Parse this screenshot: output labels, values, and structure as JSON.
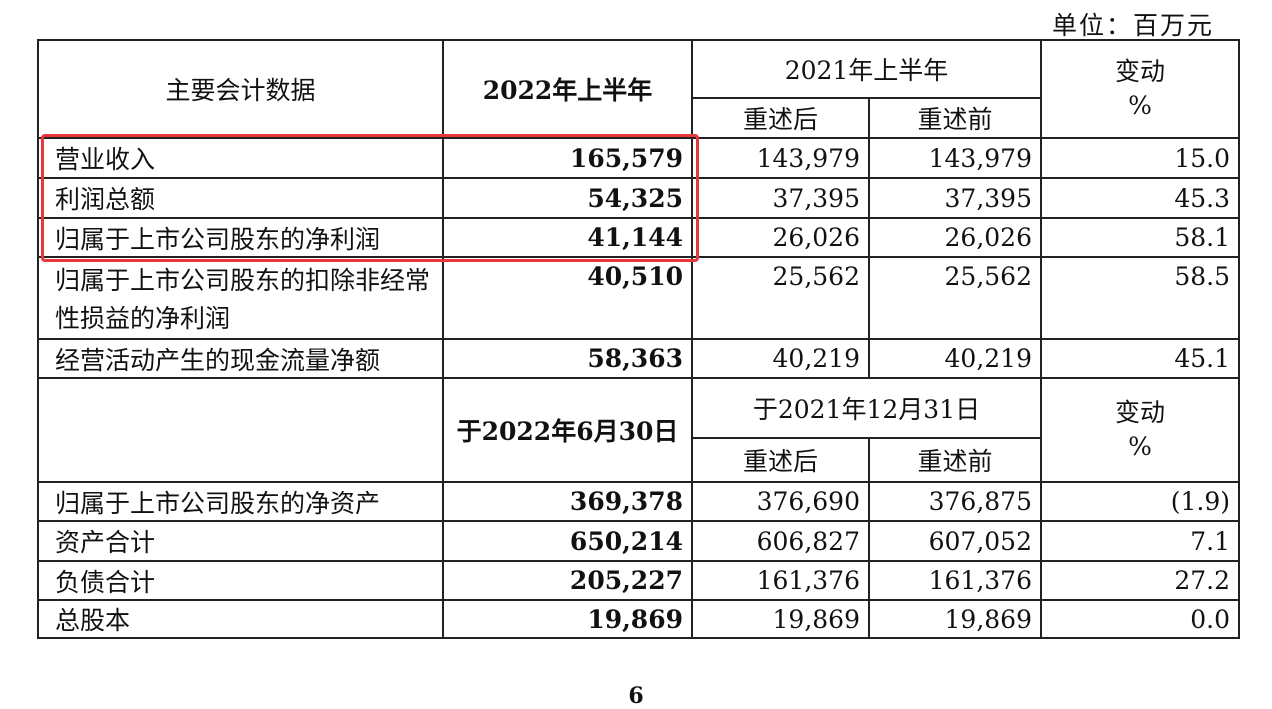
{
  "unit_label": "单位：百万元",
  "header1": {
    "col0": "主要会计数据",
    "col1": "2022年上半年",
    "group": "2021年上半年",
    "sub_restated": "重述后",
    "sub_before": "重述前",
    "change": "变动",
    "pct": "%"
  },
  "rows1": [
    {
      "label": "营业收入",
      "v2022": "165,579",
      "restated": "143,979",
      "before": "143,979",
      "change": "15.0"
    },
    {
      "label": "利润总额",
      "v2022": "54,325",
      "restated": "37,395",
      "before": "37,395",
      "change": "45.3"
    },
    {
      "label": "归属于上市公司股东的净利润",
      "v2022": "41,144",
      "restated": "26,026",
      "before": "26,026",
      "change": "58.1"
    },
    {
      "label": "归属于上市公司股东的扣除非经常性损益的净利润",
      "v2022": "40,510",
      "restated": "25,562",
      "before": "25,562",
      "change": "58.5"
    },
    {
      "label": "经营活动产生的现金流量净额",
      "v2022": "58,363",
      "restated": "40,219",
      "before": "40,219",
      "change": "45.1"
    }
  ],
  "header2": {
    "col1": "于2022年6月30日",
    "group": "于2021年12月31日",
    "sub_restated": "重述后",
    "sub_before": "重述前",
    "change": "变动",
    "pct": "%"
  },
  "rows2": [
    {
      "label": "归属于上市公司股东的净资产",
      "v2022": "369,378",
      "restated": "376,690",
      "before": "376,875",
      "change": "(1.9)"
    },
    {
      "label": "资产合计",
      "v2022": "650,214",
      "restated": "606,827",
      "before": "607,052",
      "change": "7.1"
    },
    {
      "label": "负债合计",
      "v2022": "205,227",
      "restated": "161,376",
      "before": "161,376",
      "change": "27.2"
    },
    {
      "label": "总股本",
      "v2022": "19,869",
      "restated": "19,869",
      "before": "19,869",
      "change": "0.0"
    }
  ],
  "highlight_color": "#e8373a",
  "page_number": "6"
}
